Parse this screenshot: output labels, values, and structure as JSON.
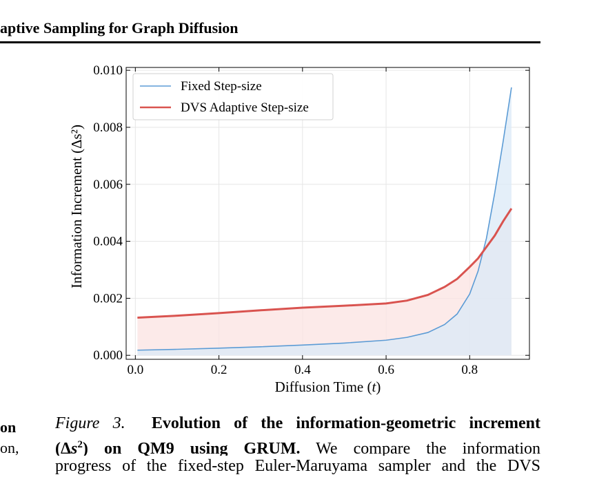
{
  "header": {
    "title": "aptive Sampling for Graph Diffusion"
  },
  "left_column": {
    "line1": "on",
    "line2": "on,"
  },
  "caption": {
    "label": "Figure 3.",
    "bold_text_1": "Evolution of the information-geometric increment",
    "bold_text_2": "on QM9 using GRUM.",
    "math": "(Δs²)",
    "text_1": "We compare the information",
    "text_2": "progress of the fixed-step Euler-Maruyama sampler and the DVS"
  },
  "chart_data": {
    "type": "line",
    "xlabel": "Diffusion Time (t)",
    "ylabel": "Information Increment (Δs²)",
    "xlim": [
      -0.022,
      0.943
    ],
    "ylim": [
      -0.00014,
      0.0101
    ],
    "x_ticks": [
      "0.0",
      "0.2",
      "0.4",
      "0.6",
      "0.8"
    ],
    "y_ticks": [
      "0.000",
      "0.002",
      "0.004",
      "0.006",
      "0.008",
      "0.010"
    ],
    "grid": true,
    "legend_position": "top-left",
    "series": [
      {
        "name": "Fixed Step-size",
        "color": "#5b9bd5",
        "fill": "#dbeaf7",
        "x": [
          0.005,
          0.1,
          0.2,
          0.3,
          0.4,
          0.5,
          0.6,
          0.65,
          0.7,
          0.74,
          0.77,
          0.8,
          0.82,
          0.84,
          0.86,
          0.88,
          0.9
        ],
        "y": [
          0.00018,
          0.00021,
          0.00025,
          0.0003,
          0.00036,
          0.00043,
          0.00053,
          0.00063,
          0.0008,
          0.00108,
          0.00145,
          0.00215,
          0.00295,
          0.0041,
          0.0057,
          0.0075,
          0.0094
        ]
      },
      {
        "name": "DVS Adaptive Step-size",
        "color": "#d9534f",
        "fill": "#fbe3e2",
        "x": [
          0.005,
          0.1,
          0.2,
          0.3,
          0.4,
          0.5,
          0.6,
          0.65,
          0.7,
          0.74,
          0.77,
          0.8,
          0.82,
          0.84,
          0.86,
          0.88,
          0.9
        ],
        "y": [
          0.00132,
          0.00139,
          0.00148,
          0.00158,
          0.00167,
          0.00174,
          0.00182,
          0.00192,
          0.00212,
          0.0024,
          0.00268,
          0.0031,
          0.0034,
          0.0038,
          0.0042,
          0.0047,
          0.00515
        ]
      }
    ]
  }
}
